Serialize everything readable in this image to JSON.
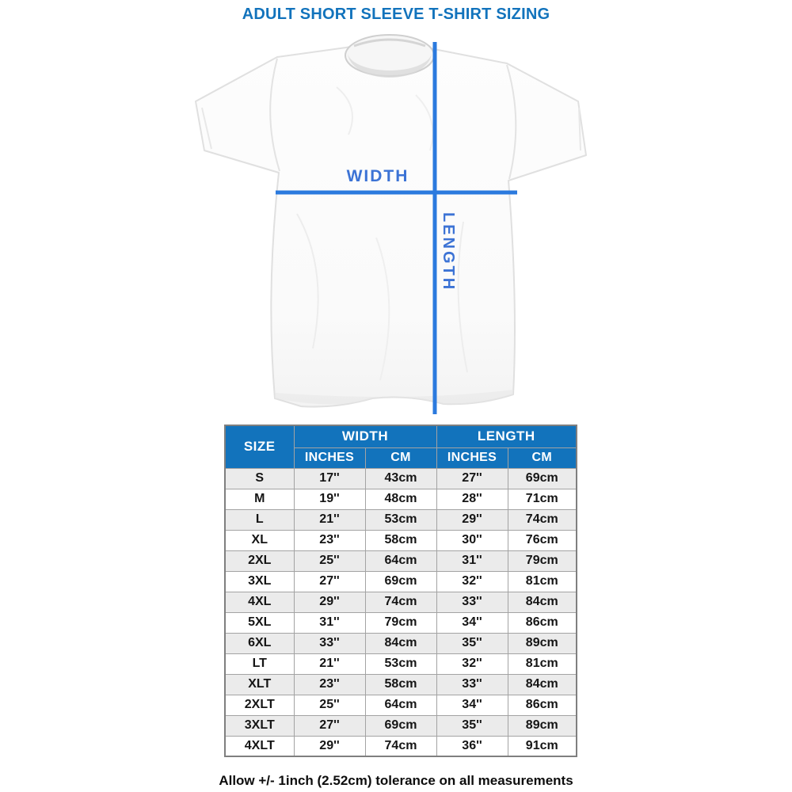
{
  "page": {
    "title": "ADULT SHORT SLEEVE T-SHIRT SIZING",
    "footer_note": "Allow +/- 1inch (2.52cm) tolerance on all measurements"
  },
  "diagram": {
    "width_label": "WIDTH",
    "length_label": "LENGTH"
  },
  "colors": {
    "header_bg": "#1273bc",
    "header_text": "#ffffff",
    "title_color": "#1273bc",
    "measure_line_blue": "#2b7ade",
    "measure_label_blue": "#3c73d5",
    "row_alt_bg": "#ebebeb",
    "row_bg": "#ffffff",
    "grid_line": "#a3a3a3",
    "outer_border": "#7f7f7f"
  },
  "chart_data": {
    "type": "table",
    "title": "ADULT SHORT SLEEVE T-SHIRT SIZING",
    "size_column_label": "SIZE",
    "column_groups": [
      {
        "label": "WIDTH",
        "columns": [
          "INCHES",
          "CM"
        ]
      },
      {
        "label": "LENGTH",
        "columns": [
          "INCHES",
          "CM"
        ]
      }
    ],
    "rows": [
      {
        "size": "S",
        "width_in": "17''",
        "width_cm": "43cm",
        "length_in": "27''",
        "length_cm": "69cm"
      },
      {
        "size": "M",
        "width_in": "19''",
        "width_cm": "48cm",
        "length_in": "28''",
        "length_cm": "71cm"
      },
      {
        "size": "L",
        "width_in": "21''",
        "width_cm": "53cm",
        "length_in": "29''",
        "length_cm": "74cm"
      },
      {
        "size": "XL",
        "width_in": "23''",
        "width_cm": "58cm",
        "length_in": "30''",
        "length_cm": "76cm"
      },
      {
        "size": "2XL",
        "width_in": "25''",
        "width_cm": "64cm",
        "length_in": "31''",
        "length_cm": "79cm"
      },
      {
        "size": "3XL",
        "width_in": "27''",
        "width_cm": "69cm",
        "length_in": "32''",
        "length_cm": "81cm"
      },
      {
        "size": "4XL",
        "width_in": "29''",
        "width_cm": "74cm",
        "length_in": "33''",
        "length_cm": "84cm"
      },
      {
        "size": "5XL",
        "width_in": "31''",
        "width_cm": "79cm",
        "length_in": "34''",
        "length_cm": "86cm"
      },
      {
        "size": "6XL",
        "width_in": "33''",
        "width_cm": "84cm",
        "length_in": "35''",
        "length_cm": "89cm"
      },
      {
        "size": "LT",
        "width_in": "21''",
        "width_cm": "53cm",
        "length_in": "32''",
        "length_cm": "81cm"
      },
      {
        "size": "XLT",
        "width_in": "23''",
        "width_cm": "58cm",
        "length_in": "33''",
        "length_cm": "84cm"
      },
      {
        "size": "2XLT",
        "width_in": "25''",
        "width_cm": "64cm",
        "length_in": "34''",
        "length_cm": "86cm"
      },
      {
        "size": "3XLT",
        "width_in": "27''",
        "width_cm": "69cm",
        "length_in": "35''",
        "length_cm": "89cm"
      },
      {
        "size": "4XLT",
        "width_in": "29''",
        "width_cm": "74cm",
        "length_in": "36''",
        "length_cm": "91cm"
      }
    ]
  }
}
